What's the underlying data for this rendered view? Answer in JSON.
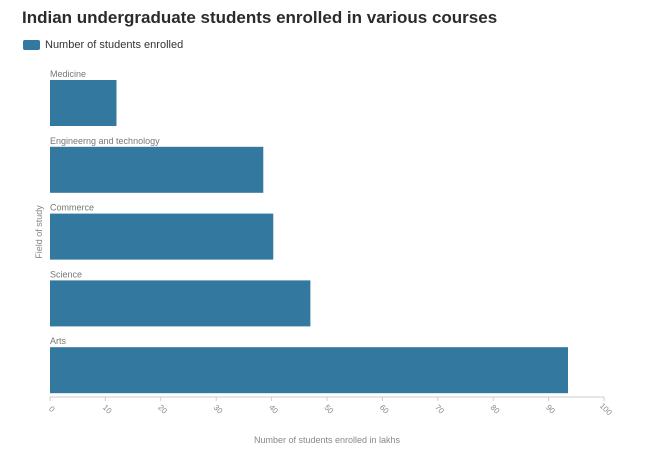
{
  "title": "Indian undergraduate students enrolled in various courses",
  "legend_label": "Number of students enrolled",
  "colors": {
    "bar": "#33789f",
    "axis": "#cccccc",
    "text": "#777777"
  },
  "chart_data": {
    "type": "bar",
    "orientation": "horizontal",
    "categories": [
      "Medicine",
      "Engineerng and technology",
      "Commerce",
      "Science",
      "Arts"
    ],
    "series": [
      {
        "name": "Number of students enrolled",
        "values": [
          12,
          38.5,
          40.3,
          47,
          93.5
        ]
      }
    ],
    "xlabel": "Number of students enrolled in lakhs",
    "ylabel": "Field of study",
    "xlim": [
      0,
      100
    ],
    "xticks": [
      0,
      10,
      20,
      30,
      40,
      50,
      60,
      70,
      80,
      90,
      100
    ],
    "grid": false,
    "legend_position": "top-left"
  }
}
